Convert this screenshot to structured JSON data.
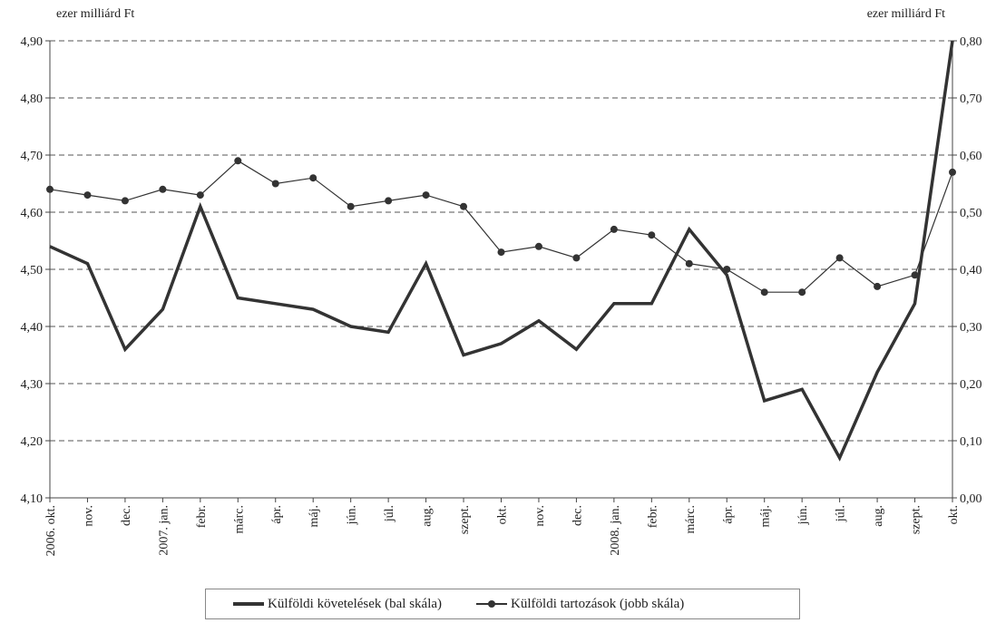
{
  "chart_data": {
    "type": "line",
    "title": "",
    "y_left_label": "ezer milliárd Ft",
    "y_right_label": "ezer milliárd Ft",
    "y_left_range": [
      4.1,
      4.9
    ],
    "y_right_range": [
      0.0,
      0.8
    ],
    "y_left_ticks": [
      "4,10",
      "4,20",
      "4,30",
      "4,40",
      "4,50",
      "4,60",
      "4,70",
      "4,80",
      "4,90"
    ],
    "y_right_ticks": [
      "0,00",
      "0,10",
      "0,20",
      "0,30",
      "0,40",
      "0,50",
      "0,60",
      "0,70",
      "0,80"
    ],
    "grid": "horizontal dashed",
    "legend_position": "bottom",
    "categories": [
      "2006. okt.",
      "nov.",
      "dec.",
      "2007. jan.",
      "febr.",
      "márc.",
      "ápr.",
      "máj.",
      "jún.",
      "júl.",
      "aug.",
      "szept.",
      "okt.",
      "nov.",
      "dec.",
      "2008. jan.",
      "febr.",
      "márc.",
      "ápr.",
      "máj.",
      "jún.",
      "júl.",
      "aug.",
      "szept.",
      "okt."
    ],
    "series": [
      {
        "name": "Külföldi követelések (bal skála)",
        "axis": "left",
        "style": "thick",
        "color": "#333333",
        "values": [
          4.54,
          4.51,
          4.36,
          4.43,
          4.61,
          4.45,
          4.44,
          4.43,
          4.4,
          4.39,
          4.51,
          4.35,
          4.37,
          4.41,
          4.36,
          4.44,
          4.44,
          4.57,
          4.49,
          4.27,
          4.29,
          4.17,
          4.32,
          4.44,
          4.9
        ]
      },
      {
        "name": "Külföldi tartozások (jobb skála)",
        "axis": "right",
        "style": "thin-marker",
        "color": "#333333",
        "values": [
          0.54,
          0.53,
          0.52,
          0.54,
          0.53,
          0.59,
          0.55,
          0.56,
          0.51,
          0.52,
          0.53,
          0.51,
          0.43,
          0.44,
          0.42,
          0.47,
          0.46,
          0.41,
          0.4,
          0.36,
          0.36,
          0.42,
          0.37,
          0.39,
          0.57
        ]
      }
    ]
  }
}
